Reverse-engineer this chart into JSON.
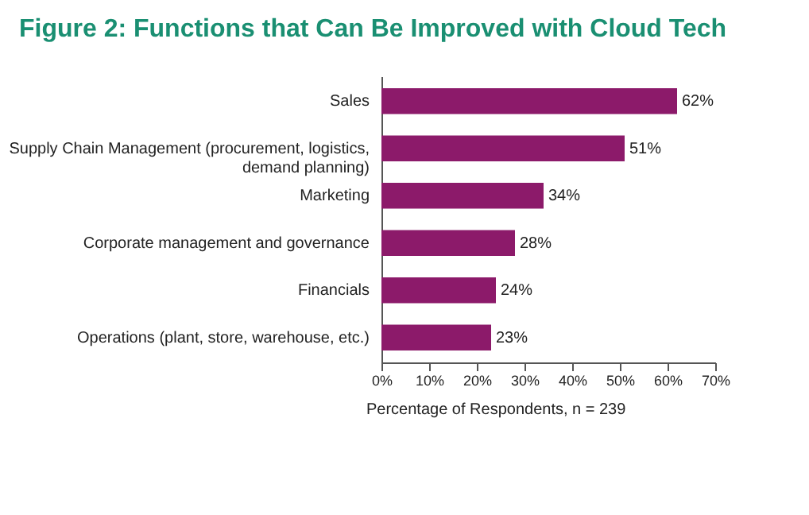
{
  "chart_data": {
    "type": "bar",
    "orientation": "horizontal",
    "title": "Figure 2: Functions that Can Be Improved with Cloud Tech",
    "xlabel": "Percentage of Respondents, n = 239",
    "categories": [
      "Sales",
      "Supply Chain Management (procurement, logistics, demand planning)",
      "Marketing",
      "Corporate management and governance",
      "Financials",
      "Operations (plant, store, warehouse, etc.)"
    ],
    "values": [
      62,
      51,
      34,
      28,
      24,
      23
    ],
    "value_labels": [
      "62%",
      "51%",
      "34%",
      "28%",
      "24%",
      "23%"
    ],
    "color": "#8c1a6a",
    "xlim": [
      0,
      70
    ],
    "xticks": [
      {
        "value": 0,
        "label": "0%"
      },
      {
        "value": 10,
        "label": "10%"
      },
      {
        "value": 20,
        "label": "20%"
      },
      {
        "value": 30,
        "label": "30%"
      },
      {
        "value": 40,
        "label": "40%"
      },
      {
        "value": 50,
        "label": "50%"
      },
      {
        "value": 60,
        "label": "60%"
      },
      {
        "value": 70,
        "label": "70%"
      }
    ],
    "grid": false
  }
}
